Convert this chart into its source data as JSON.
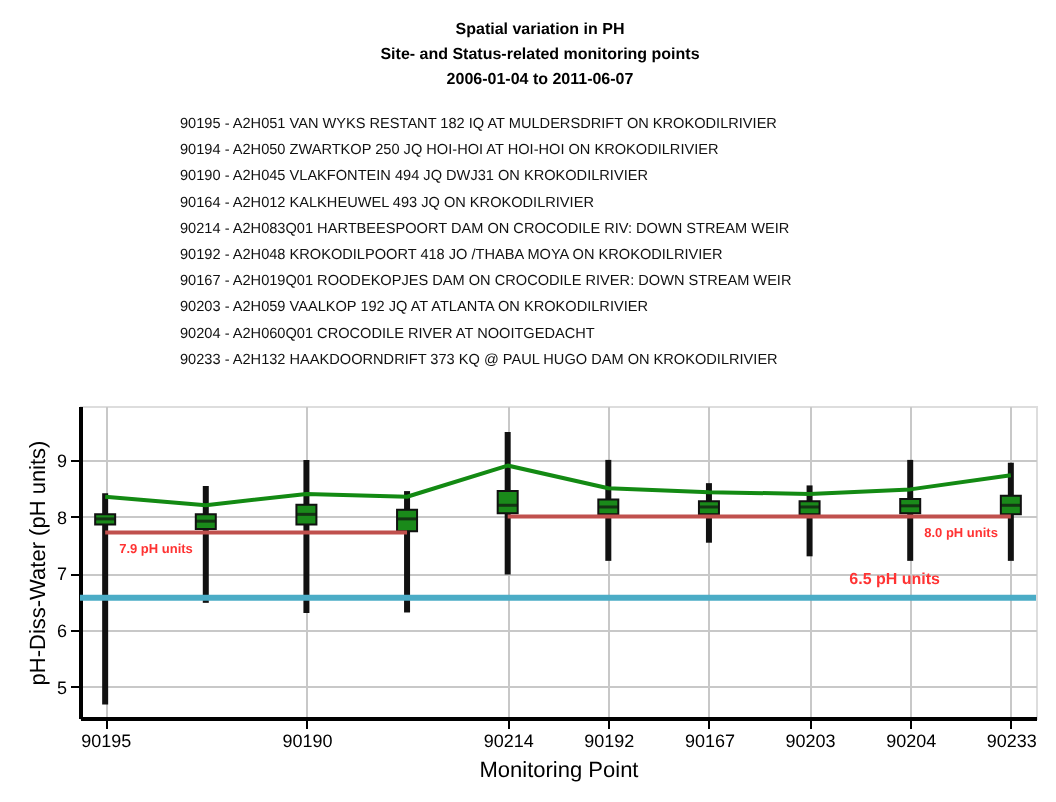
{
  "chart_data": {
    "type": "box",
    "title": "Spatial variation in PH",
    "subtitle": [
      "Site- and Status-related monitoring points",
      "2006-01-04 to 2011-06-07"
    ],
    "xlabel": "Monitoring Point",
    "ylabel": "pH-Diss-Water (pH units)",
    "categories": [
      "90195",
      null,
      "90190",
      null,
      "90214",
      "90192",
      "90167",
      "90203",
      "90204",
      "90233"
    ],
    "ylim": [
      4.45,
      9.95
    ],
    "yticks": [
      5,
      6,
      7,
      8,
      9
    ],
    "grid": true,
    "series": [
      {
        "color": "#1a8a1a",
        "boxes": [
          {
            "low": 4.69,
            "q1": 7.86,
            "median": 7.96,
            "q3": 8.04,
            "high": 8.41
          },
          {
            "low": 6.48,
            "q1": 7.78,
            "median": 7.92,
            "q3": 8.04,
            "high": 8.54
          },
          {
            "low": 6.3,
            "q1": 7.86,
            "median": 8.04,
            "q3": 8.21,
            "high": 9.0
          },
          {
            "low": 6.31,
            "q1": 7.74,
            "median": 7.96,
            "q3": 8.12,
            "high": 8.45
          },
          {
            "low": 6.98,
            "q1": 8.06,
            "median": 8.2,
            "q3": 8.45,
            "high": 9.49
          },
          {
            "low": 7.22,
            "q1": 8.04,
            "median": 8.17,
            "q3": 8.3,
            "high": 9.0
          },
          {
            "low": 7.54,
            "q1": 8.04,
            "median": 8.17,
            "q3": 8.27,
            "high": 8.59
          },
          {
            "low": 7.3,
            "q1": 8.04,
            "median": 8.17,
            "q3": 8.27,
            "high": 8.55
          },
          {
            "low": 7.22,
            "q1": 8.06,
            "median": 8.19,
            "q3": 8.31,
            "high": 9.0
          },
          {
            "low": 7.22,
            "q1": 8.04,
            "median": 8.2,
            "q3": 8.37,
            "high": 8.95
          }
        ]
      },
      {
        "type": "line",
        "color": "#138a13",
        "values": [
          8.35,
          8.2,
          8.4,
          8.35,
          8.9,
          8.5,
          8.43,
          8.4,
          8.48,
          8.73
        ]
      },
      {
        "type": "line",
        "color": "#c0504d",
        "values": [
          7.72,
          7.72,
          7.72,
          7.72,
          null,
          null,
          null,
          null,
          null,
          null
        ]
      },
      {
        "type": "line",
        "color": "#c0504d",
        "values": [
          null,
          null,
          null,
          null,
          8.0,
          8.0,
          8.0,
          8.0,
          8.0,
          8.0
        ]
      }
    ],
    "marker": "none",
    "ref_lines": [
      {
        "axis": "y",
        "value": 6.57,
        "label": "6.5 pH units",
        "color": "#4bacc6"
      }
    ],
    "annotations": [
      "90195 - A2H051 VAN WYKS RESTANT 182 IQ AT MULDERSDRIFT ON KROKODILRIVIER",
      "90194 - A2H050 ZWARTKOP 250 JQ HOI-HOI AT HOI-HOI ON KROKODILRIVIER",
      "90190 - A2H045 VLAKFONTEIN 494 JQ DWJ31 ON KROKODILRIVIER",
      "90164 - A2H012 KALKHEUWEL 493 JQ ON KROKODILRIVIER",
      "90214 - A2H083Q01 HARTBEESPOORT DAM ON CROCODILE RIV: DOWN STREAM WEIR",
      "90192 - A2H048 KROKODILPOORT 418 JO /THABA MOYA ON KROKODILRIVIER",
      "90167 - A2H019Q01 ROODEKOPJES DAM ON CROCODILE RIVER: DOWN STREAM WEIR",
      "90203 - A2H059 VAALKOP 192 JQ AT ATLANTA ON KROKODILRIVIER",
      "90204 - A2H060Q01 CROCODILE RIVER AT NOOITGEDACHT",
      "90233 - A2H132 HAAKDOORNDRIFT 373 KQ @ PAUL HUGO DAM ON KROKODILRIVIER",
      {
        "text": "7.9 pH units",
        "x": "90195",
        "y": 7.72
      },
      {
        "text": "8.0 pH units",
        "x": "90204",
        "y": 8.0
      }
    ]
  }
}
